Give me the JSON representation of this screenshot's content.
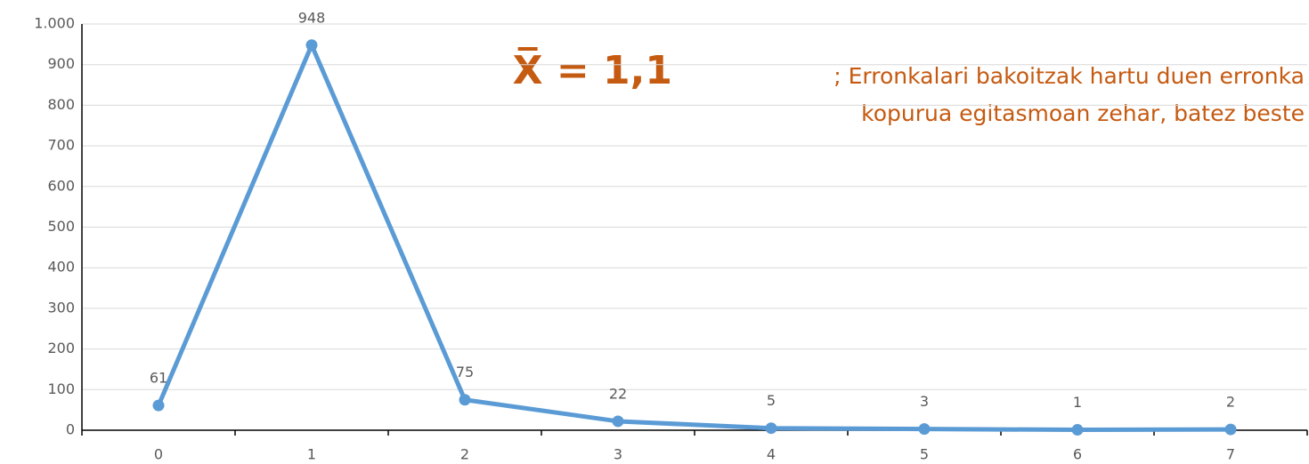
{
  "chart_data": {
    "type": "line",
    "categories": [
      "0",
      "1",
      "2",
      "3",
      "4",
      "5",
      "6",
      "7"
    ],
    "series": [
      {
        "name": null,
        "color": "#5b9bd5",
        "values": [
          61,
          948,
          75,
          22,
          5,
          3,
          1,
          2
        ]
      }
    ],
    "ylim": [
      0,
      1000
    ],
    "yticks": [
      0,
      100,
      200,
      300,
      400,
      500,
      600,
      700,
      800,
      900,
      {
        "value": 1000,
        "label": "1.000"
      }
    ],
    "grid": true,
    "annotations": [
      "X̅ = 1,1",
      "; Erronkalari bakoitzak hartu duen erronka",
      "kopurua egitasmoan zehar, batez beste"
    ]
  }
}
